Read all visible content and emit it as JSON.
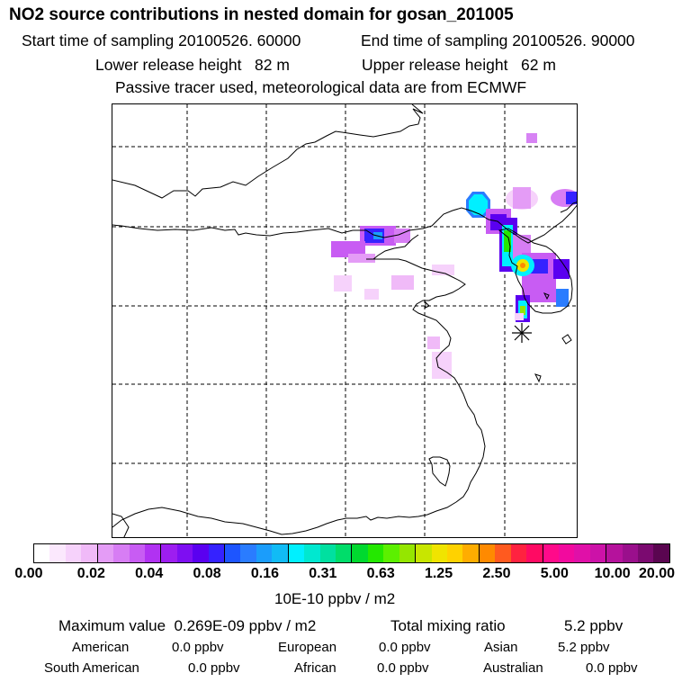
{
  "header": {
    "title": "NO2 source contributions in nested domain for gosan_201005",
    "start_label": "Start time of sampling 20100526. 60000",
    "end_label": "End time of sampling 20100526. 90000",
    "lower_height": "Lower release height   82 m",
    "upper_height": "Upper release height   62 m",
    "note": "Passive tracer used, meteorological data are from ECMWF"
  },
  "colorbar": {
    "colors": [
      "#ffffff",
      "#fbe8fd",
      "#f6d2fb",
      "#f0baf8",
      "#e49cf6",
      "#d77df4",
      "#c85cf3",
      "#b132f2",
      "#9d1ef0",
      "#7e0ef2",
      "#5a00f0",
      "#3522ff",
      "#1d55ff",
      "#2a7cff",
      "#1b9dfb",
      "#11bbf5",
      "#00f0ff",
      "#00e8d0",
      "#00e0a0",
      "#00dd6a",
      "#00d92f",
      "#24e800",
      "#5cf000",
      "#95e600",
      "#c8e600",
      "#f0e400",
      "#ffd200",
      "#ffad00",
      "#ff8a00",
      "#ff5a1f",
      "#ff2240",
      "#ff0a63",
      "#ff0a8a",
      "#f20a9e",
      "#e010a8",
      "#cc12a8",
      "#b5129c",
      "#9a0f8c",
      "#7b0a70",
      "#5a0550"
    ],
    "ticks": [
      "0.00",
      "0.02",
      "0.04",
      "0.08",
      "0.16",
      "0.31",
      "0.63",
      "1.25",
      "2.50",
      "5.00",
      "10.00",
      "20.00"
    ],
    "unit": "10E-10 ppbv / m2"
  },
  "summary": {
    "max_label": "Maximum value  0.269E-09 ppbv / m2",
    "total_label": "Total mixing ratio",
    "total_value": "5.2 ppbv",
    "regions": [
      {
        "name": "American",
        "value": "0.0 ppbv"
      },
      {
        "name": "European",
        "value": "0.0 ppbv"
      },
      {
        "name": "Asian",
        "value": "5.2 ppbv"
      },
      {
        "name": "South American",
        "value": "0.0 ppbv"
      },
      {
        "name": "African",
        "value": "0.0 ppbv"
      },
      {
        "name": "Australian",
        "value": "0.0 ppbv"
      }
    ]
  }
}
